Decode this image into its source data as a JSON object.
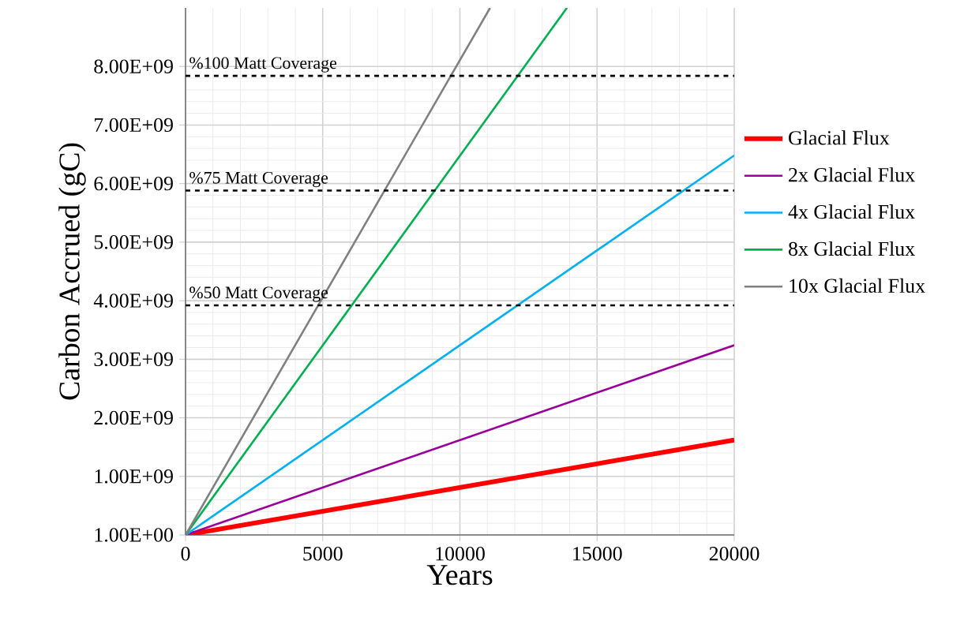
{
  "chart_data": {
    "type": "line",
    "xlabel": "Years",
    "ylabel": "Carbon Accrued (gC)",
    "xlim": [
      0,
      20000
    ],
    "ylim": [
      1,
      9000000000
    ],
    "xticks": [
      0,
      5000,
      10000,
      15000,
      20000
    ],
    "yticks": [
      {
        "value": 1,
        "label": "1.00E+00"
      },
      {
        "value": 1000000000,
        "label": "1.00E+09"
      },
      {
        "value": 2000000000,
        "label": "2.00E+09"
      },
      {
        "value": 3000000000,
        "label": "3.00E+09"
      },
      {
        "value": 4000000000,
        "label": "4.00E+09"
      },
      {
        "value": 5000000000,
        "label": "5.00E+09"
      },
      {
        "value": 6000000000,
        "label": "6.00E+09"
      },
      {
        "value": 7000000000,
        "label": "7.00E+09"
      },
      {
        "value": 8000000000,
        "label": "8.00E+09"
      }
    ],
    "grid": true,
    "legend": "right",
    "marker": "none",
    "line_style": "solid",
    "series": [
      {
        "name": "Glacial Flux",
        "color": "#ff0000",
        "x": [
          0,
          20000
        ],
        "values": [
          1,
          1620000000
        ]
      },
      {
        "name": "2x Glacial Flux",
        "color": "#990099",
        "x": [
          0,
          20000
        ],
        "values": [
          1,
          3240000000
        ]
      },
      {
        "name": "4x Glacial Flux",
        "color": "#00b0f0",
        "x": [
          0,
          20000
        ],
        "values": [
          1,
          6480000000
        ]
      },
      {
        "name": "8x Glacial Flux",
        "color": "#00b050",
        "x": [
          0,
          13900
        ],
        "values": [
          1,
          9000000000
        ]
      },
      {
        "name": "10x Glacial Flux",
        "color": "#808080",
        "x": [
          0,
          11100
        ],
        "values": [
          1,
          9000000000
        ]
      }
    ],
    "ref_lines": [
      {
        "axis": "y",
        "value": 7840000000,
        "label": "%100 Matt Coverage",
        "color": "#000000",
        "line_style": "dashed"
      },
      {
        "axis": "y",
        "value": 5880000000,
        "label": "%75 Matt Coverage",
        "color": "#000000",
        "line_style": "dashed"
      },
      {
        "axis": "y",
        "value": 3920000000,
        "label": "%50 Matt Coverage",
        "color": "#000000",
        "line_style": "dashed"
      }
    ]
  }
}
